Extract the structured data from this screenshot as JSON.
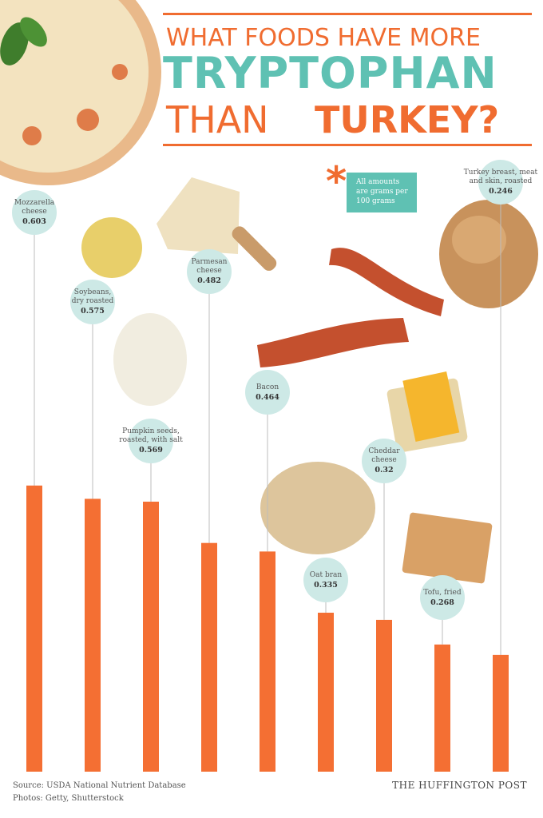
{
  "title": {
    "line1": "WHAT FOODS HAVE MORE",
    "line2": "TRYPTOPHAN",
    "line3a": "THAN",
    "line3b": "TURKEY?"
  },
  "note": {
    "asterisk": "*",
    "text_line1": "All amounts",
    "text_line2": "are grams per",
    "text_line3": "100 grams"
  },
  "chart_data": {
    "type": "bar",
    "title": "WHAT FOODS HAVE MORE TRYPTOPHAN THAN TURKEY?",
    "categories": [
      [
        "Mozzarella",
        "cheese"
      ],
      [
        "Soybeans,",
        "dry roasted"
      ],
      [
        "Pumpkin seeds,",
        "roasted, with salt"
      ],
      [
        "Parmesan",
        "cheese"
      ],
      [
        "Bacon"
      ],
      [
        "Oat bran"
      ],
      [
        "Cheddar",
        "cheese"
      ],
      [
        "Tofu, fried"
      ],
      [
        "Turkey breast, meat",
        "and skin, roasted"
      ]
    ],
    "values": [
      0.603,
      0.575,
      0.569,
      0.482,
      0.464,
      0.335,
      0.32,
      0.268,
      0.246
    ],
    "value_labels": [
      "0.603",
      "0.575",
      "0.569",
      "0.482",
      "0.464",
      "0.335",
      "0.32",
      "0.268",
      "0.246"
    ],
    "unit": "grams per 100 grams",
    "grid": false,
    "colors": {
      "bar": "#f46f33",
      "bubble": "#cde9e6",
      "stem": "#bdbdbd"
    }
  },
  "footer": {
    "source": "Source:  USDA National Nutrient Database",
    "photos": "Photos: Getty, Shutterstock",
    "brand": "THE HUFFINGTON POST"
  }
}
